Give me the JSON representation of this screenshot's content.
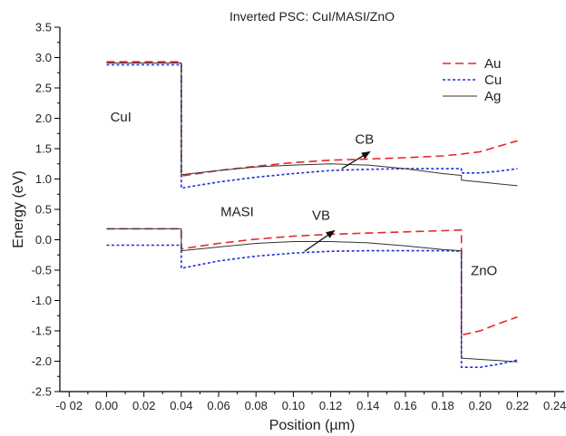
{
  "chart_data": {
    "type": "line",
    "title": "Inverted PSC: CuI/MASI/ZnO",
    "xlabel": "Position (µm)",
    "ylabel": "Energy (eV)",
    "xlim": [
      -0.025,
      0.245
    ],
    "ylim": [
      -2.5,
      3.5
    ],
    "x_ticks": [
      -0.02,
      0.0,
      0.02,
      0.04,
      0.06,
      0.08,
      0.1,
      0.12,
      0.14,
      0.16,
      0.18,
      0.2,
      0.22,
      0.24
    ],
    "x_tick_labels": [
      "-0 02",
      "0.00",
      "0.02",
      "0.04",
      "0.06",
      "0.08",
      "0.10",
      "0.12",
      "0.14",
      "0.16",
      "0.18",
      "0.20",
      "0.22",
      "0.24"
    ],
    "y_ticks": [
      -2.5,
      -2.0,
      -1.5,
      -1.0,
      -0.5,
      0.0,
      0.5,
      1.0,
      1.5,
      2.0,
      2.5,
      3.0,
      3.5
    ],
    "y_tick_labels": [
      "-2.5",
      "-2.0",
      "-1.5",
      "-1.0",
      "-0.5",
      "0.0",
      "0.5",
      "1.0",
      "1.5",
      "2.0",
      "2.5",
      "3.0",
      "3.5"
    ],
    "grid": false,
    "legend": "top-right",
    "series": [
      {
        "name": "Au",
        "color": "#e8262a",
        "dash": "dashed",
        "band": "CB",
        "points": [
          [
            0.0,
            2.93
          ],
          [
            0.04,
            2.93
          ],
          [
            0.04,
            1.05
          ],
          [
            0.06,
            1.14
          ],
          [
            0.08,
            1.21
          ],
          [
            0.1,
            1.27
          ],
          [
            0.12,
            1.31
          ],
          [
            0.14,
            1.33
          ],
          [
            0.16,
            1.35
          ],
          [
            0.18,
            1.38
          ],
          [
            0.19,
            1.41
          ],
          [
            0.2,
            1.45
          ],
          [
            0.21,
            1.54
          ],
          [
            0.22,
            1.63
          ]
        ]
      },
      {
        "name": "Au",
        "color": "#e8262a",
        "dash": "dashed",
        "band": "VB",
        "points": [
          [
            0.0,
            0.18
          ],
          [
            0.04,
            0.18
          ],
          [
            0.04,
            -0.15
          ],
          [
            0.06,
            -0.06
          ],
          [
            0.08,
            0.01
          ],
          [
            0.1,
            0.06
          ],
          [
            0.12,
            0.09
          ],
          [
            0.14,
            0.11
          ],
          [
            0.16,
            0.13
          ],
          [
            0.18,
            0.15
          ],
          [
            0.19,
            0.16
          ],
          [
            0.19,
            -1.57
          ],
          [
            0.2,
            -1.5
          ],
          [
            0.21,
            -1.38
          ],
          [
            0.22,
            -1.27
          ]
        ]
      },
      {
        "name": "Cu",
        "color": "#1f2fd6",
        "dash": "dotted",
        "band": "CB",
        "points": [
          [
            0.0,
            2.88
          ],
          [
            0.04,
            2.88
          ],
          [
            0.04,
            0.85
          ],
          [
            0.06,
            0.95
          ],
          [
            0.08,
            1.03
          ],
          [
            0.1,
            1.09
          ],
          [
            0.12,
            1.14
          ],
          [
            0.14,
            1.16
          ],
          [
            0.16,
            1.17
          ],
          [
            0.18,
            1.17
          ],
          [
            0.19,
            1.17
          ],
          [
            0.19,
            1.1
          ],
          [
            0.2,
            1.1
          ],
          [
            0.21,
            1.13
          ],
          [
            0.22,
            1.17
          ]
        ]
      },
      {
        "name": "Cu",
        "color": "#1f2fd6",
        "dash": "dotted",
        "band": "VB",
        "points": [
          [
            0.0,
            -0.09
          ],
          [
            0.04,
            -0.09
          ],
          [
            0.04,
            -0.47
          ],
          [
            0.06,
            -0.35
          ],
          [
            0.08,
            -0.27
          ],
          [
            0.1,
            -0.22
          ],
          [
            0.12,
            -0.19
          ],
          [
            0.14,
            -0.18
          ],
          [
            0.16,
            -0.18
          ],
          [
            0.18,
            -0.18
          ],
          [
            0.19,
            -0.19
          ],
          [
            0.19,
            -2.1
          ],
          [
            0.2,
            -2.1
          ],
          [
            0.21,
            -2.05
          ],
          [
            0.22,
            -1.98
          ]
        ]
      },
      {
        "name": "Ag",
        "color": "#333333",
        "dash": "solid",
        "band": "CB",
        "points": [
          [
            0.0,
            2.91
          ],
          [
            0.04,
            2.91
          ],
          [
            0.04,
            1.07
          ],
          [
            0.06,
            1.14
          ],
          [
            0.08,
            1.2
          ],
          [
            0.1,
            1.23
          ],
          [
            0.12,
            1.25
          ],
          [
            0.14,
            1.23
          ],
          [
            0.16,
            1.17
          ],
          [
            0.18,
            1.09
          ],
          [
            0.19,
            1.06
          ],
          [
            0.19,
            0.98
          ],
          [
            0.2,
            0.95
          ],
          [
            0.21,
            0.92
          ],
          [
            0.22,
            0.89
          ]
        ]
      },
      {
        "name": "Ag",
        "color": "#333333",
        "dash": "solid",
        "band": "VB",
        "points": [
          [
            0.0,
            0.18
          ],
          [
            0.04,
            0.18
          ],
          [
            0.04,
            -0.18
          ],
          [
            0.06,
            -0.12
          ],
          [
            0.08,
            -0.06
          ],
          [
            0.1,
            -0.03
          ],
          [
            0.12,
            -0.03
          ],
          [
            0.14,
            -0.05
          ],
          [
            0.16,
            -0.1
          ],
          [
            0.18,
            -0.16
          ],
          [
            0.19,
            -0.18
          ],
          [
            0.19,
            -1.95
          ],
          [
            0.2,
            -1.97
          ],
          [
            0.21,
            -1.99
          ],
          [
            0.22,
            -2.01
          ]
        ]
      }
    ],
    "legend_entries": [
      {
        "label": "Au",
        "color": "#e8262a",
        "dash": "dashed"
      },
      {
        "label": "Cu",
        "color": "#1f2fd6",
        "dash": "dotted"
      },
      {
        "label": "Ag",
        "color": "#333333",
        "dash": "solid"
      }
    ],
    "annotations": [
      {
        "text": "CuI",
        "x": 0.002,
        "y": 1.95,
        "kind": "label"
      },
      {
        "text": "MASI",
        "x": 0.061,
        "y": 0.39,
        "kind": "label"
      },
      {
        "text": "ZnO",
        "x": 0.195,
        "y": -0.58,
        "kind": "label"
      },
      {
        "text": "CB",
        "x": 0.133,
        "y": 1.58,
        "kind": "label"
      },
      {
        "text": "VB",
        "x": 0.11,
        "y": 0.33,
        "kind": "label"
      },
      {
        "kind": "arrow",
        "from": [
          0.126,
          1.17
        ],
        "to": [
          0.141,
          1.45
        ]
      },
      {
        "kind": "arrow",
        "from": [
          0.106,
          -0.19
        ],
        "to": [
          0.122,
          0.15
        ]
      }
    ]
  }
}
